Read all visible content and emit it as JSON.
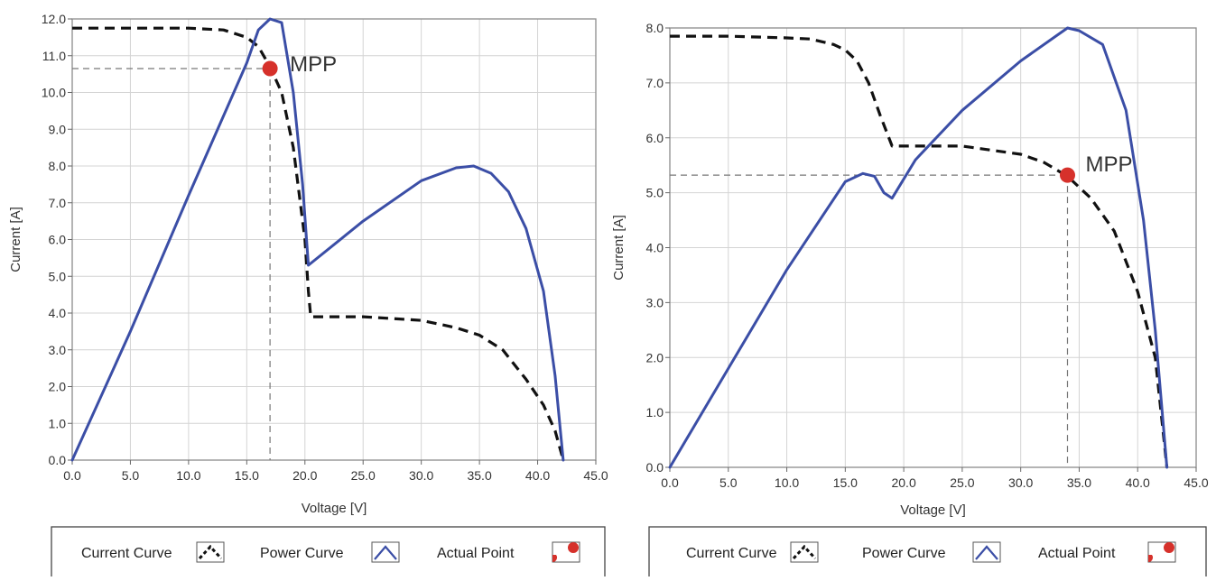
{
  "chart_data": [
    {
      "type": "line",
      "xlabel": "Voltage [V]",
      "ylabel": "Current [A]",
      "xlim": [
        0,
        45
      ],
      "ylim": [
        0,
        12
      ],
      "xticks": [
        "0.0",
        "5.0",
        "10.0",
        "15.0",
        "20.0",
        "25.0",
        "30.0",
        "35.0",
        "40.0",
        "45.0"
      ],
      "yticks": [
        "0.0",
        "1.0",
        "2.0",
        "3.0",
        "4.0",
        "5.0",
        "6.0",
        "7.0",
        "8.0",
        "9.0",
        "10.0",
        "11.0",
        "12.0"
      ],
      "grid": true,
      "series": [
        {
          "name": "Current Curve",
          "style": "dashed",
          "color": "#111111",
          "x": [
            0,
            5,
            10,
            13,
            15,
            16,
            17,
            18,
            19,
            20,
            20.3,
            20.5,
            25,
            30,
            33,
            35,
            37,
            39,
            40.5,
            41.5,
            42.2
          ],
          "y": [
            11.75,
            11.75,
            11.75,
            11.7,
            11.5,
            11.25,
            10.7,
            10.0,
            8.5,
            6.0,
            4.6,
            3.9,
            3.9,
            3.8,
            3.6,
            3.4,
            3.0,
            2.2,
            1.5,
            0.8,
            0.0
          ]
        },
        {
          "name": "Power Curve",
          "style": "solid",
          "color": "#3b4ea6",
          "x": [
            0,
            5,
            10,
            15,
            16,
            17,
            18,
            19,
            19.8,
            20.3,
            25,
            30,
            33,
            34.5,
            36,
            37.5,
            39,
            40.5,
            41.5,
            42.2
          ],
          "y": [
            0.0,
            3.5,
            7.2,
            10.8,
            11.7,
            12.0,
            11.9,
            10.0,
            7.5,
            5.3,
            6.5,
            7.6,
            7.95,
            8.0,
            7.8,
            7.3,
            6.3,
            4.6,
            2.3,
            0.0
          ]
        }
      ],
      "points": [
        {
          "name": "Actual Point",
          "label": "MPP",
          "x": 17,
          "y": 10.65,
          "color": "#d6312b"
        }
      ],
      "legend": {
        "position": "bottom",
        "items": [
          {
            "label": "Current Curve",
            "icon": "dashed-curve-icon"
          },
          {
            "label": "Power Curve",
            "icon": "power-curve-icon"
          },
          {
            "label": "Actual Point",
            "icon": "red-dot-icon"
          }
        ]
      }
    },
    {
      "type": "line",
      "xlabel": "Voltage [V]",
      "ylabel": "Current [A]",
      "xlim": [
        0,
        45
      ],
      "ylim": [
        0,
        8
      ],
      "xticks": [
        "0.0",
        "5.0",
        "10.0",
        "15.0",
        "20.0",
        "25.0",
        "30.0",
        "35.0",
        "40.0",
        "45.0"
      ],
      "yticks": [
        "0.0",
        "1.0",
        "2.0",
        "3.0",
        "4.0",
        "5.0",
        "6.0",
        "7.0",
        "8.0"
      ],
      "grid": true,
      "series": [
        {
          "name": "Current Curve",
          "style": "dashed",
          "color": "#111111",
          "x": [
            0,
            5,
            10,
            12,
            14,
            15,
            16,
            17,
            18,
            19,
            20,
            25,
            30,
            32,
            34,
            36,
            38,
            40,
            41.5,
            42.5
          ],
          "y": [
            7.85,
            7.85,
            7.82,
            7.8,
            7.7,
            7.6,
            7.4,
            7.0,
            6.4,
            5.85,
            5.85,
            5.85,
            5.7,
            5.55,
            5.3,
            4.9,
            4.3,
            3.2,
            2.0,
            0.0
          ]
        },
        {
          "name": "Power Curve",
          "style": "solid",
          "color": "#3b4ea6",
          "x": [
            0,
            5,
            10,
            15,
            16.5,
            17.5,
            18.3,
            19,
            21,
            25,
            30,
            33,
            34,
            35,
            37,
            39,
            40.5,
            41.5,
            42.5
          ],
          "y": [
            0.0,
            1.8,
            3.6,
            5.2,
            5.35,
            5.3,
            5.0,
            4.9,
            5.6,
            6.5,
            7.4,
            7.85,
            8.0,
            7.95,
            7.7,
            6.5,
            4.5,
            2.5,
            0.0
          ]
        }
      ],
      "points": [
        {
          "name": "Actual Point",
          "label": "MPP",
          "x": 34,
          "y": 5.32,
          "color": "#d6312b"
        }
      ],
      "legend": {
        "position": "bottom",
        "items": [
          {
            "label": "Current Curve",
            "icon": "dashed-curve-icon"
          },
          {
            "label": "Power Curve",
            "icon": "power-curve-icon"
          },
          {
            "label": "Actual Point",
            "icon": "red-dot-icon"
          }
        ]
      }
    }
  ]
}
